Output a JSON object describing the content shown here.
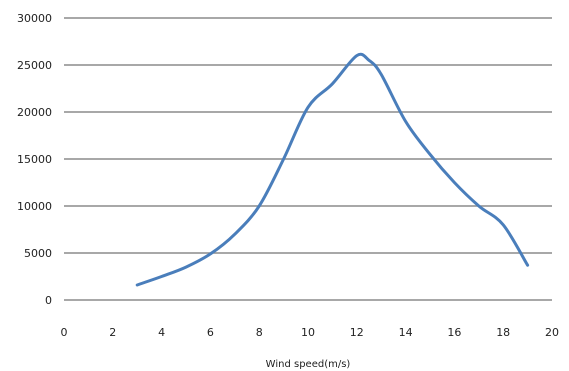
{
  "chart_data": {
    "type": "line",
    "title": "",
    "xlabel": "Wind speed(m/s)",
    "ylabel": "",
    "xlim": [
      0,
      20
    ],
    "ylim": [
      0,
      30000
    ],
    "x_ticks": [
      "0",
      "2",
      "4",
      "6",
      "8",
      "10",
      "12",
      "14",
      "16",
      "18",
      "20"
    ],
    "y_ticks": [
      "0",
      "5000",
      "10000",
      "15000",
      "20000",
      "25000",
      "30000"
    ],
    "grid": "horizontal",
    "legend": "none",
    "series": [
      {
        "color": "#4a7ebb",
        "x": [
          3,
          4,
          5,
          6,
          7,
          8,
          9,
          10,
          11,
          12,
          12.5,
          13,
          14,
          15,
          16,
          17,
          18,
          19
        ],
        "y": [
          1600,
          2500,
          3500,
          4900,
          7000,
          10000,
          15000,
          20500,
          23000,
          26000,
          25500,
          24000,
          19000,
          15500,
          12500,
          10000,
          8000,
          3700
        ]
      }
    ]
  }
}
